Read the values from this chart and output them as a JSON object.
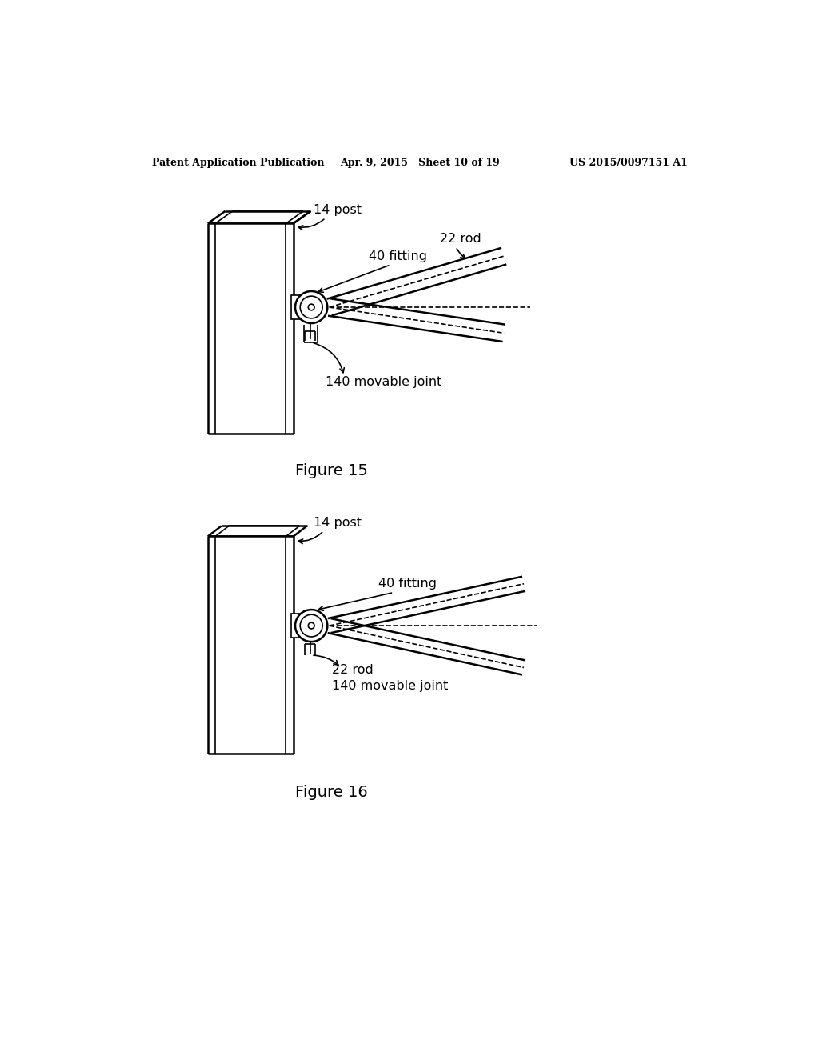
{
  "bg_color": "#ffffff",
  "line_color": "#000000",
  "header_left": "Patent Application Publication",
  "header_center": "Apr. 9, 2015   Sheet 10 of 19",
  "header_right": "US 2015/0097151 A1",
  "fig15_caption": "Figure 15",
  "fig16_caption": "Figure 16",
  "fig15_labels": {
    "post": "14 post",
    "fitting": "40 fitting",
    "rod": "22 rod",
    "joint": "140 movable joint"
  },
  "fig16_labels": {
    "post": "14 post",
    "fitting": "40 fitting",
    "rod": "22 rod",
    "joint": "140 movable joint"
  }
}
